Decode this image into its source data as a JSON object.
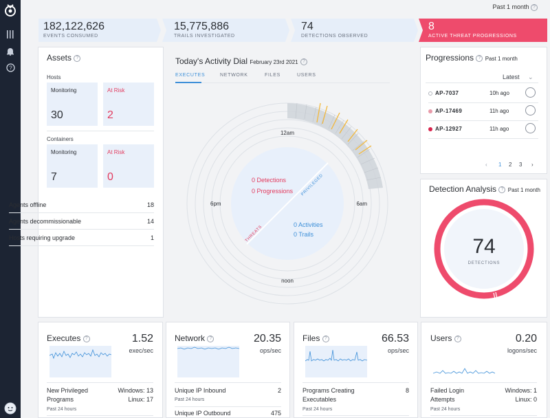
{
  "period_selector": "Past 1 month",
  "stats": [
    {
      "value": "182,122,626",
      "label": "EVENTS CONSUMED"
    },
    {
      "value": "15,775,886",
      "label": "TRAILS INVESTIGATED"
    },
    {
      "value": "74",
      "label": "DETECTIONS OBSERVED"
    },
    {
      "value": "8",
      "label": "ACTIVE THREAT PROGRESSIONS"
    }
  ],
  "assets": {
    "title": "Assets",
    "hosts_label": "Hosts",
    "containers_label": "Containers",
    "hosts": {
      "monitoring_label": "Monitoring",
      "monitoring": "30",
      "risk_label": "At Risk",
      "risk": "2"
    },
    "containers": {
      "monitoring_label": "Monitoring",
      "monitoring": "7",
      "risk_label": "At Risk",
      "risk": "0"
    },
    "rows": [
      {
        "label": "Agents offline",
        "value": "18"
      },
      {
        "label": "Agents decommissionable",
        "value": "14"
      },
      {
        "label": "Hosts requiring upgrade",
        "value": "1"
      }
    ]
  },
  "dial": {
    "title": "Today's Activity Dial",
    "date": "February 23rd 2021",
    "tabs": [
      "EXECUTES",
      "NETWORK",
      "FILES",
      "USERS"
    ],
    "hours": {
      "top": "12am",
      "right": "6am",
      "bottom": "noon",
      "left": "6pm"
    },
    "threats_label": "THREATS",
    "privileged_label": "PRIVILEGED",
    "detections": "0",
    "detections_label": "Detections",
    "progressions": "0",
    "progressions_label": "Progressions",
    "activities": "0",
    "activities_label": "Activities",
    "trails": "0",
    "trails_label": "Trails"
  },
  "progressions": {
    "title": "Progressions",
    "period": "Past 1 month",
    "sort": "Latest",
    "items": [
      {
        "id": "AP-7037",
        "ago": "10h ago",
        "color": "#ffffff"
      },
      {
        "id": "AP-17469",
        "ago": "11h ago",
        "color": "#e89aa9"
      },
      {
        "id": "AP-12927",
        "ago": "11h ago",
        "color": "#d8244d"
      }
    ],
    "pages": [
      "1",
      "2",
      "3"
    ]
  },
  "detection_analysis": {
    "title": "Detection Analysis",
    "period": "Past 1 month",
    "value": "74",
    "label": "DETECTIONS",
    "color": "#ee4b6c"
  },
  "bottom": [
    {
      "title": "Executes",
      "value": "1.52",
      "unit": "exec/sec",
      "r1_label": "New Privileged Programs",
      "r1_value_a": "Windows: 13",
      "r1_value_b": "Linux: 17",
      "r1_sub": "Past 24 hours"
    },
    {
      "title": "Network",
      "value": "20.35",
      "unit": "ops/sec",
      "r1_label": "Unique IP Inbound",
      "r1_value": "2",
      "r1_sub": "Past 24 hours",
      "r2_label": "Unique IP Outbound",
      "r2_value": "475"
    },
    {
      "title": "Files",
      "value": "66.53",
      "unit": "ops/sec",
      "r1_label": "Programs Creating Executables",
      "r1_value": "8",
      "r1_sub": "Past 24 hours"
    },
    {
      "title": "Users",
      "value": "0.20",
      "unit": "logons/sec",
      "r1_label": "Failed Login Attempts",
      "r1_value_a": "Windows: 1",
      "r1_value_b": "Linux: 0",
      "r1_sub": "Past 24 hours"
    }
  ]
}
